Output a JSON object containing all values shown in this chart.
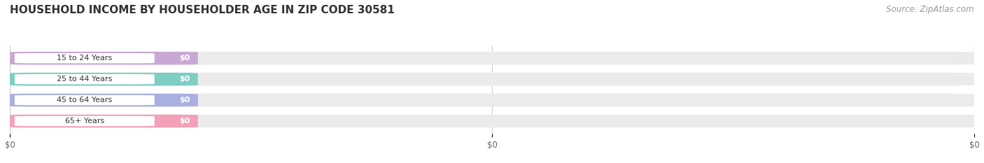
{
  "title": "HOUSEHOLD INCOME BY HOUSEHOLDER AGE IN ZIP CODE 30581",
  "source": "Source: ZipAtlas.com",
  "categories": [
    "15 to 24 Years",
    "25 to 44 Years",
    "45 to 64 Years",
    "65+ Years"
  ],
  "values": [
    0,
    0,
    0,
    0
  ],
  "bar_colors": [
    "#c9a8d4",
    "#7ecec4",
    "#a8b0e0",
    "#f4a0b8"
  ],
  "bar_bg_color": "#ebebeb",
  "title_fontsize": 11,
  "source_fontsize": 8.5,
  "figsize": [
    14.06,
    2.33
  ],
  "dpi": 100,
  "background_color": "#ffffff",
  "grid_color": "#cccccc",
  "xticks": [
    0,
    0.5,
    1.0
  ],
  "xtick_labels": [
    "$0",
    "$0",
    "$0"
  ]
}
